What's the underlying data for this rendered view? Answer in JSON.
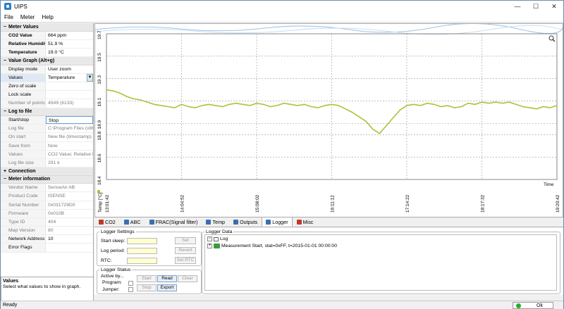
{
  "window": {
    "title": "UIPS",
    "minimize": "—",
    "maximize": "☐",
    "close": "✕"
  },
  "menu": {
    "file": "File",
    "meter": "Meter",
    "help": "Help"
  },
  "meter_values": {
    "header": "Meter Values",
    "co2_label": "CO2 Value",
    "co2_value": "664 ppm",
    "rh_label": "Relative Humidity",
    "rh_value": "51.9 %",
    "temp_label": "Temperature",
    "temp_value": "19.0 °C"
  },
  "value_graph": {
    "header": "Value Graph (Alt+g)",
    "display_mode_label": "Display mode",
    "display_mode_value": "User zoom",
    "values_label": "Values",
    "values_value": "Temperature",
    "zero_label": "Zero of scale",
    "lock_label": "Lock scale",
    "points_label": "Number of points",
    "points_value": "4549 (6133)"
  },
  "log_to_file": {
    "header": "Log to file",
    "start_label": "Start/stop",
    "start_value": "Stop",
    "file_label": "Log file",
    "file_value": "C:\\Program Files (x86)",
    "onstart_label": "On start",
    "onstart_value": "New file (timestamp)",
    "save_label": "Save from",
    "save_value": "Now",
    "values_label": "Values",
    "values_value": "CO2 Value; Relative H",
    "size_label": "Log file size",
    "size_value": "291 k"
  },
  "connection": {
    "header": "Connection"
  },
  "meter_info": {
    "header": "Meter information",
    "vendor_label": "Vendor Name",
    "vendor_value": "SenseAir AB",
    "product_label": "Product Code",
    "product_value": "tSENSE",
    "serial_label": "Serial Number",
    "serial_value": "0x031729D0",
    "fw_label": "Firmware",
    "fw_value": "0x010B",
    "type_label": "Type ID",
    "type_value": "404",
    "map_label": "Map Version",
    "map_value": "80",
    "net_label": "Network Address",
    "net_value": "10",
    "err_label": "Error Flags",
    "err_value": ""
  },
  "help": {
    "title": "Values",
    "text": "Select what values to show in graph."
  },
  "chart_data": {
    "type": "line",
    "ylabel": "Temp [°C]",
    "xlabel": "Time",
    "ylim": [
      18.4,
      19.7
    ],
    "yticks": [
      "19.7",
      "19.5",
      "19.3",
      "19.1",
      "18.9",
      "18.8",
      "18.6",
      "18.4"
    ],
    "ytick_values": [
      19.7,
      19.5,
      19.3,
      19.1,
      18.9,
      18.8,
      18.6,
      18.4
    ],
    "xticks": [
      "13:01:42",
      "14:04:52",
      "15:08:02",
      "16:11:12",
      "17:14:22",
      "18:17:32",
      "19:20:42"
    ],
    "series": [
      {
        "values": [
          19.2,
          19.19,
          19.17,
          19.14,
          19.12,
          19.11,
          19.09,
          19.07,
          19.06,
          19.05,
          19.04,
          19.07,
          19.05,
          19.04,
          19.06,
          19.07,
          19.06,
          19.05,
          19.07,
          19.08,
          19.07,
          19.06,
          19.08,
          19.07,
          19.05,
          19.06,
          19.08,
          19.07,
          19.06,
          19.07,
          19.05,
          19.04,
          19.06,
          19.07,
          19.06,
          19.03,
          19.0,
          18.96,
          18.92,
          18.85,
          18.81,
          18.88,
          18.95,
          19.02,
          19.06,
          19.07,
          19.06,
          19.08,
          19.07,
          19.05,
          19.06,
          19.04,
          19.05,
          19.08,
          19.07,
          19.09,
          19.08,
          19.09,
          19.08,
          19.09,
          19.07,
          19.05,
          19.04,
          19.03,
          19.05,
          19.04,
          19.06
        ]
      }
    ],
    "line_color": "#a6c53a"
  },
  "tabs": [
    {
      "label": "CO2",
      "color": "#c0392b"
    },
    {
      "label": "ABC",
      "color": "#3a6fb0"
    },
    {
      "label": "FRAC(Signal filter)",
      "color": "#3a6fb0"
    },
    {
      "label": "Temp",
      "color": "#3a6fb0"
    },
    {
      "label": "Outputs",
      "color": "#3a6fb0"
    },
    {
      "label": "Logger",
      "color": "#3a6fb0"
    },
    {
      "label": "Misc",
      "color": "#c0392b"
    }
  ],
  "logger_settings": {
    "legend": "Logger Settings",
    "start_sleep": "Start sleep:",
    "log_period": "Log period:",
    "rtc": "RTC:",
    "set": "Set",
    "revert": "Revert",
    "set_rtc": "Set RTC"
  },
  "logger_status": {
    "legend": "Logger Status",
    "active_by": "Active by...",
    "program": "Program:",
    "jumper": "Jumper:",
    "start": "Start",
    "read": "Read",
    "clear": "Clear",
    "stop": "Stop",
    "export": "Export"
  },
  "logger_data": {
    "legend": "Logger Data",
    "root": "Log",
    "entry": "Measurement Start, stat=0xFF, t=2015-01-01 00:00:00"
  },
  "status": {
    "left": "Ready",
    "right": "Ok"
  }
}
